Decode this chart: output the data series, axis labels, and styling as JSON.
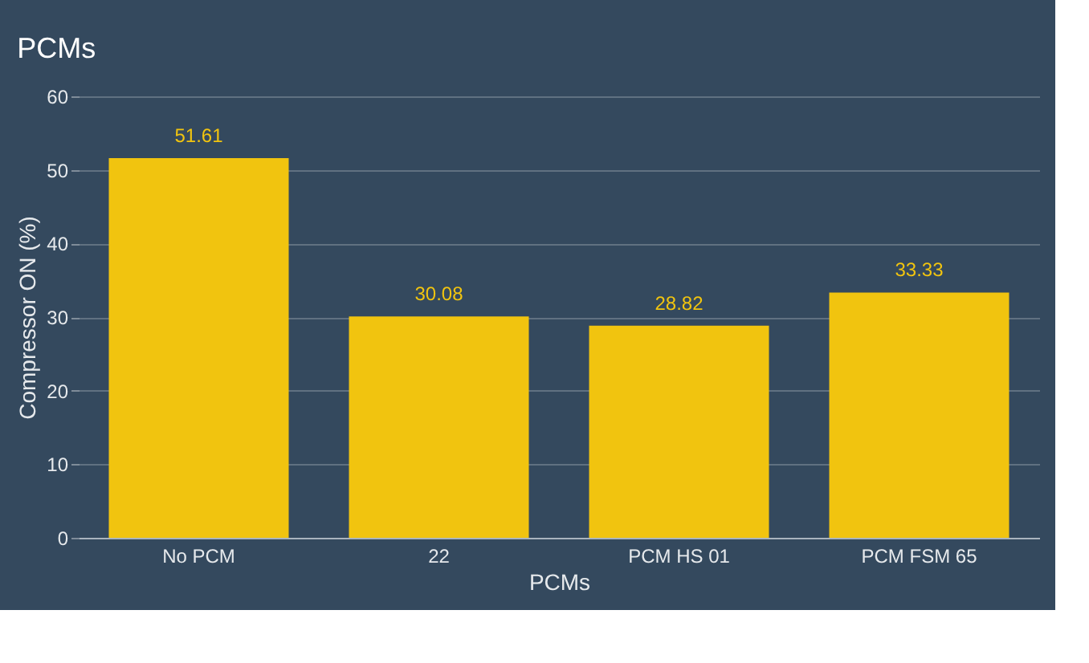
{
  "chart_data": {
    "type": "bar",
    "title": "PCMs",
    "xlabel": "PCMs",
    "ylabel": "Compressor ON (%)",
    "categories": [
      "No PCM",
      "22",
      "PCM HS 01",
      "PCM FSM 65"
    ],
    "values": [
      51.61,
      30.08,
      28.82,
      33.33
    ],
    "color": "#f1c40f",
    "ylim": [
      0,
      60
    ],
    "yticks": [
      0,
      10,
      20,
      30,
      40,
      50,
      60
    ],
    "grid": "y",
    "data_labels": true
  }
}
